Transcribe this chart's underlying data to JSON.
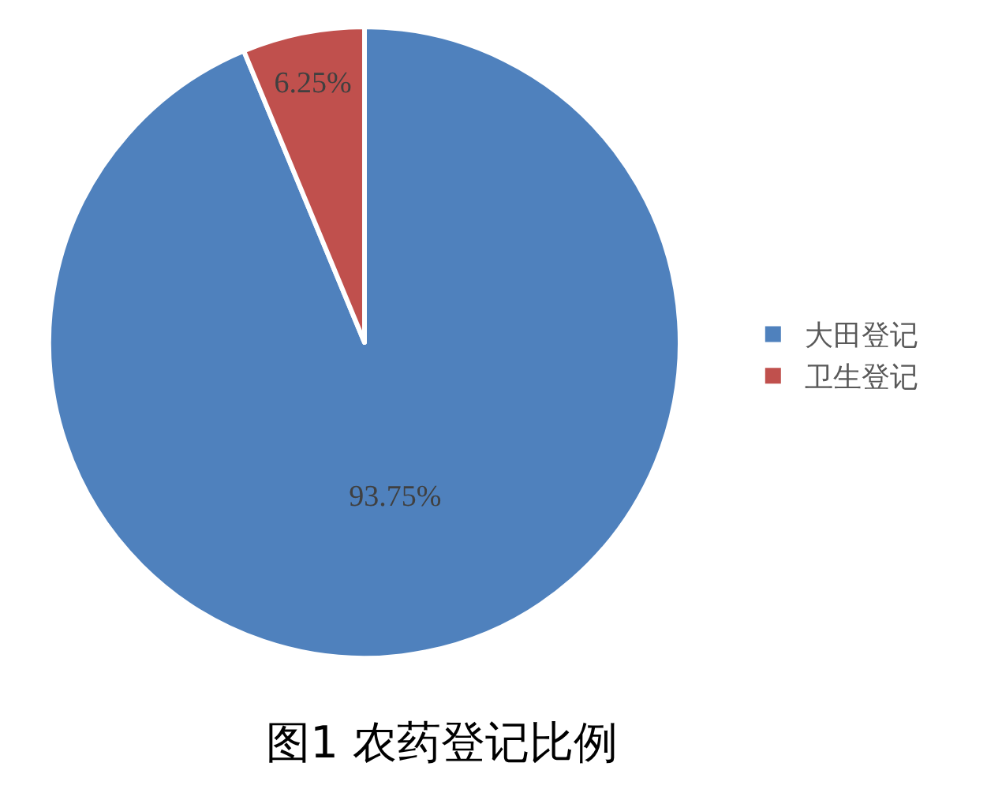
{
  "chart_data": {
    "type": "pie",
    "title": "图1 农药登记比例",
    "categories": [
      "大田登记",
      "卫生登记"
    ],
    "values": [
      93.75,
      6.25
    ],
    "colors": [
      "#4f81bd",
      "#c0504d"
    ],
    "value_labels": [
      "93.75%",
      "6.25%"
    ],
    "legend": "right"
  }
}
